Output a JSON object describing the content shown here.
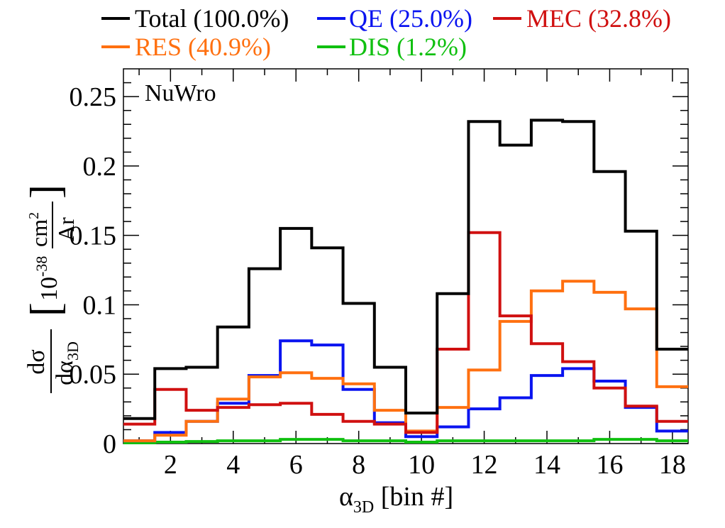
{
  "chart_data": {
    "type": "line",
    "step": true,
    "annotation": "NuWro",
    "xlabel": {
      "main": "α",
      "sub": "3D",
      "rest": " [bin #]"
    },
    "ylabel": {
      "num": "dσ",
      "den_main": "dα",
      "den_sub": "3D",
      "unit_prefix": "10",
      "unit_exp": "-38",
      "unit_num": "cm",
      "unit_num_exp": "2",
      "unit_den": "Ar"
    },
    "xlim": [
      0.5,
      18.5
    ],
    "ylim": [
      0,
      0.27
    ],
    "xticks": [
      2,
      4,
      6,
      8,
      10,
      12,
      14,
      16,
      18
    ],
    "xtick_labels": [
      "2",
      "4",
      "6",
      "8",
      "10",
      "12",
      "14",
      "16",
      "18"
    ],
    "yticks": [
      0,
      0.05,
      0.1,
      0.15,
      0.2,
      0.25
    ],
    "ytick_labels": [
      "0",
      "0.05",
      "0.1",
      "0.15",
      "0.2",
      "0.25"
    ],
    "bin_edges": [
      0.5,
      1.5,
      2.5,
      3.5,
      4.5,
      5.5,
      6.5,
      7.5,
      8.5,
      9.5,
      10.5,
      11.5,
      12.5,
      13.5,
      14.5,
      15.5,
      16.5,
      17.5,
      18.5
    ],
    "legend_position": "top, above plot",
    "series": [
      {
        "name": "Total (100.0%)",
        "color": "#000000",
        "values": [
          0.018,
          0.054,
          0.055,
          0.084,
          0.126,
          0.155,
          0.141,
          0.101,
          0.055,
          0.022,
          0.108,
          0.232,
          0.215,
          0.233,
          0.232,
          0.196,
          0.153,
          0.068
        ]
      },
      {
        "name": "QE (25.0%)",
        "color": "#0a14f0",
        "values": [
          0.002,
          0.008,
          0.016,
          0.029,
          0.049,
          0.074,
          0.071,
          0.039,
          0.015,
          0.005,
          0.012,
          0.025,
          0.033,
          0.049,
          0.054,
          0.045,
          0.026,
          0.009
        ]
      },
      {
        "name": "MEC (32.8%)",
        "color": "#d01010",
        "values": [
          0.014,
          0.039,
          0.024,
          0.026,
          0.028,
          0.029,
          0.021,
          0.016,
          0.014,
          0.008,
          0.068,
          0.152,
          0.092,
          0.072,
          0.059,
          0.04,
          0.027,
          0.016
        ]
      },
      {
        "name": "RES (40.9%)",
        "color": "#ff7010",
        "values": [
          0.002,
          0.006,
          0.016,
          0.032,
          0.048,
          0.051,
          0.047,
          0.043,
          0.024,
          0.009,
          0.026,
          0.053,
          0.088,
          0.11,
          0.117,
          0.109,
          0.097,
          0.041
        ]
      },
      {
        "name": "DIS (1.2%)",
        "color": "#10c010",
        "values": [
          0.0005,
          0.001,
          0.0015,
          0.002,
          0.002,
          0.003,
          0.003,
          0.002,
          0.002,
          0.001,
          0.002,
          0.002,
          0.002,
          0.002,
          0.002,
          0.003,
          0.003,
          0.002
        ]
      }
    ]
  }
}
